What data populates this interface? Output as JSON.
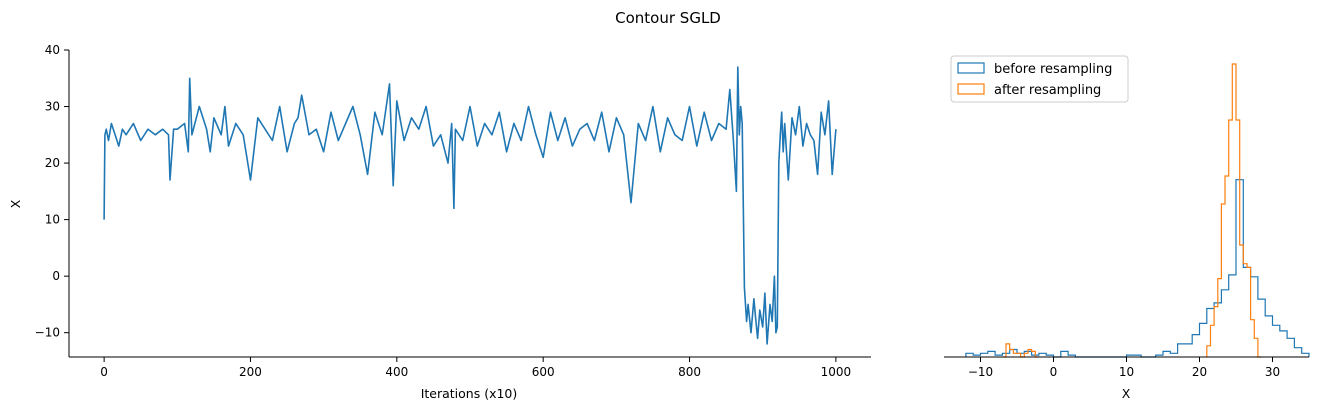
{
  "figure": {
    "suptitle": "Contour SGLD"
  },
  "colors": {
    "blue": "#1f77b4",
    "orange": "#ff7f0e",
    "axis": "#000000",
    "legend_border": "#cccccc"
  },
  "chart_data": [
    {
      "type": "line",
      "title": "",
      "xlabel": "Iterations (x10)",
      "ylabel": "X",
      "xlim": [
        -48,
        1048
      ],
      "ylim": [
        -14.3,
        40
      ],
      "xticks": [
        0,
        200,
        400,
        600,
        800,
        1000
      ],
      "xtick_labels": [
        "0",
        "200",
        "400",
        "600",
        "800",
        "1000"
      ],
      "yticks": [
        -10,
        0,
        10,
        20,
        30,
        40
      ],
      "ytick_labels": [
        "−10",
        "0",
        "10",
        "20",
        "30",
        "40"
      ],
      "grid": false,
      "series": [
        {
          "color": "#1f77b4",
          "x": [
            0,
            1,
            3,
            6,
            10,
            15,
            20,
            25,
            30,
            40,
            50,
            60,
            70,
            80,
            88,
            90,
            95,
            100,
            110,
            115,
            117,
            120,
            130,
            140,
            145,
            150,
            160,
            165,
            170,
            180,
            190,
            200,
            210,
            220,
            230,
            240,
            250,
            260,
            265,
            270,
            280,
            290,
            300,
            310,
            320,
            330,
            340,
            350,
            360,
            370,
            380,
            390,
            395,
            400,
            410,
            420,
            430,
            440,
            450,
            460,
            470,
            475,
            478,
            480,
            490,
            500,
            510,
            520,
            530,
            540,
            550,
            560,
            570,
            580,
            590,
            600,
            610,
            620,
            630,
            640,
            650,
            660,
            670,
            680,
            690,
            700,
            710,
            720,
            730,
            740,
            750,
            760,
            770,
            780,
            790,
            800,
            810,
            820,
            830,
            840,
            850,
            855,
            860,
            864,
            866,
            868,
            870,
            872,
            875,
            878,
            880,
            884,
            888,
            890,
            893,
            896,
            900,
            903,
            906,
            910,
            913,
            916,
            918,
            920,
            922,
            924,
            926,
            928,
            930,
            935,
            940,
            945,
            950,
            955,
            960,
            965,
            970,
            975,
            980,
            985,
            990,
            995,
            1000
          ],
          "y": [
            10,
            25,
            26,
            24,
            27,
            25,
            23,
            26,
            25,
            27,
            24,
            26,
            25,
            26,
            25,
            17,
            26,
            26,
            27,
            22,
            35,
            25,
            30,
            26,
            22,
            28,
            25,
            30,
            23,
            27,
            25,
            17,
            28,
            26,
            24,
            30,
            22,
            27,
            28,
            32,
            25,
            26,
            22,
            29,
            24,
            27,
            30,
            25,
            18,
            29,
            25,
            34,
            16,
            31,
            24,
            28,
            26,
            30,
            23,
            25,
            20,
            27,
            12,
            26,
            24,
            30,
            23,
            27,
            25,
            29,
            22,
            27,
            24,
            30,
            25,
            21,
            29,
            24,
            28,
            23,
            26,
            27,
            24,
            29,
            22,
            28,
            25,
            13,
            27,
            24,
            30,
            22,
            28,
            25,
            24,
            30,
            23,
            29,
            24,
            27,
            26,
            33,
            24,
            15,
            37,
            25,
            30,
            27,
            -2,
            -8,
            -5,
            -10,
            -4,
            -7,
            -11,
            -6,
            -9,
            -3,
            -12,
            -5,
            -8,
            0,
            -10,
            -9,
            20,
            25,
            29,
            22,
            27,
            17,
            28,
            25,
            30,
            23,
            27,
            25,
            24,
            18,
            29,
            25,
            31,
            18,
            26
          ]
        }
      ]
    },
    {
      "type": "histogram",
      "title": "",
      "xlabel": "X",
      "ylabel": "",
      "xlim": [
        -15,
        35
      ],
      "xticks": [
        -10,
        0,
        10,
        20,
        30
      ],
      "xtick_labels": [
        "−10",
        "0",
        "10",
        "20",
        "30"
      ],
      "ylim": [
        0,
        0.157
      ],
      "legend": {
        "location": "upper left"
      },
      "grid": false,
      "series": [
        {
          "name": "before resampling",
          "color": "#1f77b4",
          "bin_edges": [
            -12,
            -11,
            -10,
            -9,
            -8,
            -7,
            -6,
            -5,
            -4,
            -3,
            -2,
            -1,
            0,
            1,
            2,
            3,
            4,
            5,
            6,
            7,
            8,
            9,
            10,
            11,
            12,
            13,
            14,
            15,
            16,
            17,
            18,
            19,
            20,
            21,
            22,
            23,
            24,
            25,
            26,
            27,
            28,
            29,
            30,
            31,
            32,
            33,
            34,
            35
          ],
          "counts": [
            0.002,
            0.001,
            0.002,
            0.003,
            0.001,
            0.002,
            0.004,
            0.002,
            0.003,
            0.001,
            0.002,
            0.001,
            0.0,
            0.003,
            0.001,
            0.0,
            0.0,
            0.0,
            0.0,
            0.0,
            0.0,
            0.0,
            0.001,
            0.001,
            0.0,
            0.0,
            0.001,
            0.003,
            0.002,
            0.007,
            0.007,
            0.012,
            0.018,
            0.026,
            0.029,
            0.036,
            0.044,
            0.095,
            0.048,
            0.043,
            0.031,
            0.022,
            0.017,
            0.014,
            0.01,
            0.005,
            0.002
          ]
        },
        {
          "name": "after resampling",
          "color": "#ff7f0e",
          "bin_edges": [
            -7,
            -6.5,
            -6,
            -5.5,
            -5,
            -4.5,
            -4,
            -3.5,
            -3,
            -2.5,
            -2,
            21,
            21.5,
            22,
            22.5,
            23,
            23.5,
            24,
            24.5,
            25,
            25.5,
            26,
            26.5,
            27,
            27.5,
            28,
            28.5
          ],
          "counts": [
            0.0,
            0.007,
            0.004,
            0.002,
            0.002,
            0.0,
            0.002,
            0.004,
            0.003,
            0.0,
            null,
            0.006,
            0.017,
            0.027,
            0.042,
            0.082,
            0.097,
            0.127,
            0.157,
            0.127,
            0.06,
            0.05,
            0.048,
            0.02,
            0.01,
            0.0
          ]
        }
      ]
    }
  ]
}
